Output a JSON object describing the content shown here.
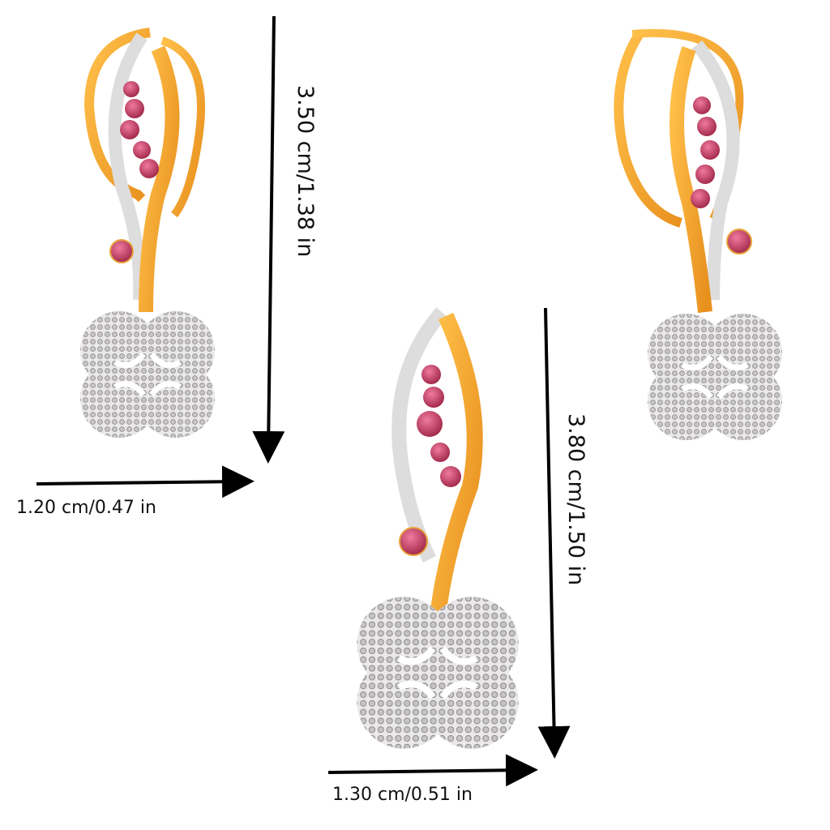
{
  "measurements": {
    "earring_height": "3.50 cm/1.38 in",
    "earring_width": "1.20 cm/0.47 in",
    "pendant_height": "3.80 cm/1.50 in",
    "pendant_width": "1.30 cm/0.51 in"
  },
  "colors": {
    "gold": "#f0a22a",
    "white_gold": "#e6e6e6",
    "gem": "#b8355a",
    "arrow": "#000000"
  }
}
